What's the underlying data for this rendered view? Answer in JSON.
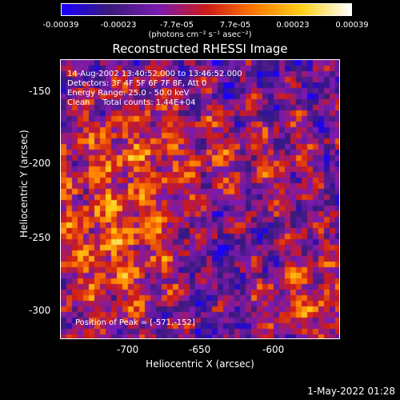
{
  "colorbar": {
    "tick_labels": [
      "-0.00039",
      "-0.00023",
      "-7.7e-05",
      "7.7e-05",
      "0.00023",
      "0.00039"
    ],
    "units_label": "(photons cm⁻² s⁻¹ asec⁻²)"
  },
  "title": "Reconstructed RHESSI Image",
  "annotations": {
    "time": "14-Aug-2002 13:40:52.000 to 13:46:52.000",
    "detectors": "Detectors: 3F 4F 5F 6F 7F 8F, Att 0",
    "energy": "Energy Range: 25.0 - 50.0 keV",
    "method": "Clean     Total counts: 1.44E+04",
    "peak": "Position of Peak = [-571,-152]"
  },
  "axes": {
    "ylabel": "Heliocentric Y (arcsec)",
    "xlabel": "Heliocentric X (arcsec)",
    "y_ticks": [
      "-150",
      "-200",
      "-250",
      "-300"
    ],
    "x_ticks": [
      "-700",
      "-650",
      "-600"
    ]
  },
  "timestamp": "1-May-2022 01:28",
  "colors": {
    "background": "#000000",
    "colormap": [
      "#1a00ff",
      "#3a1a7a",
      "#7a1ab0",
      "#cc1a1a",
      "#ff7a00",
      "#ffd21a",
      "#ffffff"
    ]
  }
}
